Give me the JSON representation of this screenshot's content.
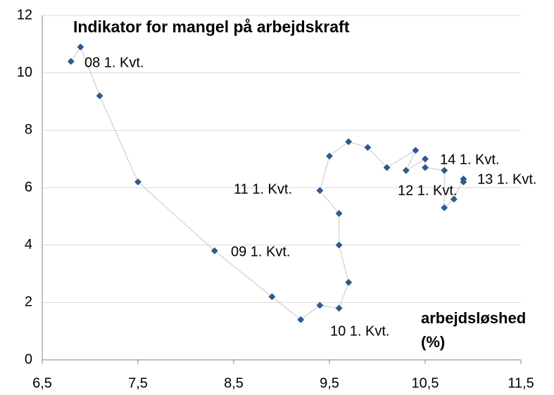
{
  "chart_data": {
    "type": "scatter",
    "title": "Indikator for mangel på arbejdskraft",
    "x_label": "arbejdsløshed (%)",
    "series": [
      {
        "name": null,
        "color": "#2e5a8c",
        "x": [
          6.8,
          6.9,
          7.1,
          7.5,
          8.3,
          8.9,
          9.2,
          9.4,
          9.6,
          9.7,
          9.6,
          9.6,
          9.4,
          9.5,
          9.7,
          9.9,
          10.1,
          10.4,
          10.3,
          10.5,
          10.5,
          10.7,
          10.7,
          10.8,
          10.9,
          10.9
        ],
        "values": [
          10.4,
          10.9,
          9.2,
          6.2,
          3.8,
          2.2,
          1.4,
          1.9,
          1.8,
          2.7,
          4.0,
          5.1,
          5.9,
          7.1,
          7.6,
          7.4,
          6.7,
          7.3,
          6.6,
          7.0,
          6.7,
          6.6,
          5.3,
          5.6,
          6.3,
          6.2
        ]
      }
    ],
    "annotations": [
      "08 1. Kvt.",
      "09 1. Kvt.",
      "10 1. Kvt.",
      "11 1. Kvt.",
      "12 1. Kvt.",
      "13 1. Kvt.",
      "14 1. Kvt."
    ],
    "xlim": [
      6.5,
      11.5
    ],
    "ylim": [
      0,
      12
    ],
    "xticks": [
      {
        "value": 6.5,
        "label": "6,5"
      },
      {
        "value": 7.5,
        "label": "7,5"
      },
      {
        "value": 8.5,
        "label": "8,5"
      },
      {
        "value": 9.5,
        "label": "9,5"
      },
      {
        "value": 10.5,
        "label": "10,5"
      },
      {
        "value": 11.5,
        "label": "11,5"
      }
    ],
    "yticks": [
      0,
      2,
      4,
      6,
      8,
      10,
      12
    ],
    "grid": true,
    "connected": true
  }
}
